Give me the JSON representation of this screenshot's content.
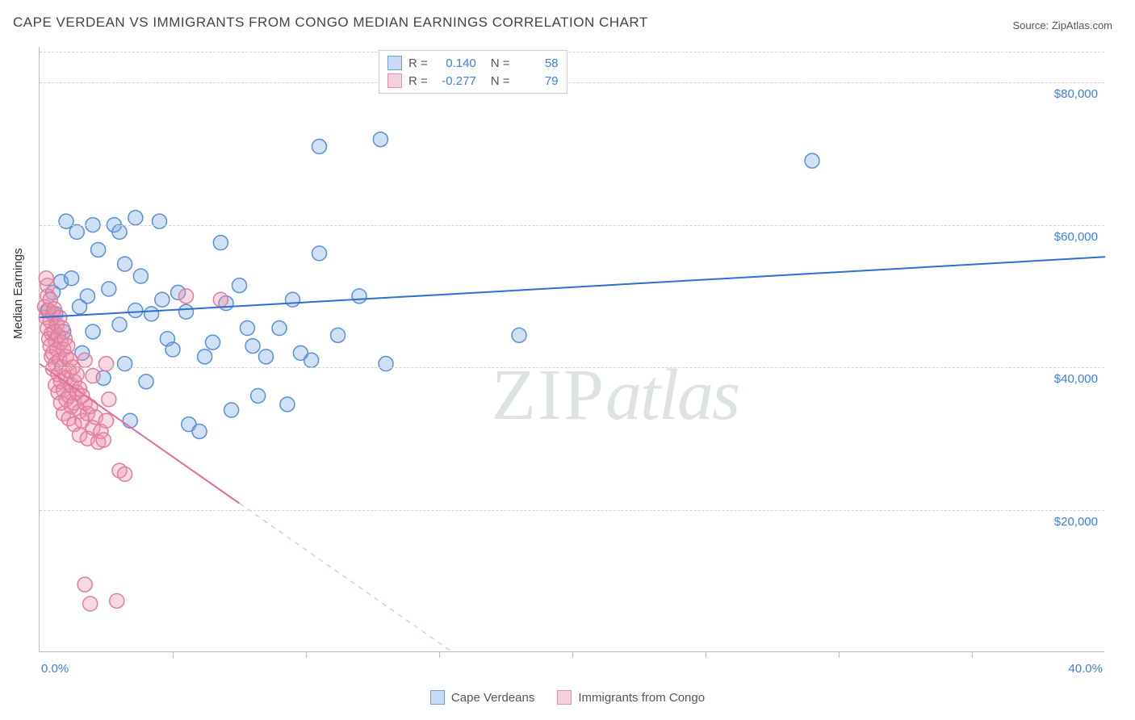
{
  "title": "CAPE VERDEAN VS IMMIGRANTS FROM CONGO MEDIAN EARNINGS CORRELATION CHART",
  "source": "Source: ZipAtlas.com",
  "watermark": "ZIPatlas",
  "y_axis_title": "Median Earnings",
  "chart": {
    "type": "scatter",
    "xlim": [
      0,
      40
    ],
    "ylim": [
      0,
      85000
    ],
    "x_ticks_minor_count": 8,
    "x_labels": {
      "min": "0.0%",
      "max": "40.0%"
    },
    "y_gridlines": [
      20000,
      40000,
      60000,
      80000
    ],
    "y_labels": [
      "$20,000",
      "$40,000",
      "$60,000",
      "$80,000"
    ],
    "background_color": "#ffffff",
    "grid_color": "#d5d5d5",
    "axis_color": "#bbbbbb",
    "tick_label_color": "#3b7de0",
    "marker_radius": 9,
    "marker_stroke_width": 1.5,
    "trendline_width": 2,
    "series": [
      {
        "name": "Cape Verdeans",
        "fill_color": "rgba(120,165,225,0.35)",
        "stroke_color": "#5b8fd6",
        "swatch_fill": "#c9dbf2",
        "swatch_border": "#6a9fe0",
        "R": "0.140",
        "N": "58",
        "trend": {
          "x1": 0,
          "y1": 47000,
          "x2": 40,
          "y2": 55500,
          "solid": true,
          "color": "#2e6fd1"
        },
        "points": [
          [
            0.3,
            48000
          ],
          [
            0.5,
            50500
          ],
          [
            0.6,
            47500
          ],
          [
            0.8,
            52000
          ],
          [
            0.9,
            45000
          ],
          [
            1.0,
            60500
          ],
          [
            1.2,
            52500
          ],
          [
            1.4,
            59000
          ],
          [
            1.5,
            48500
          ],
          [
            1.6,
            42000
          ],
          [
            1.8,
            50000
          ],
          [
            2.0,
            60000
          ],
          [
            2.0,
            45000
          ],
          [
            2.2,
            56500
          ],
          [
            2.4,
            38500
          ],
          [
            2.6,
            51000
          ],
          [
            2.8,
            60000
          ],
          [
            3.0,
            59000
          ],
          [
            3.0,
            46000
          ],
          [
            3.2,
            40500
          ],
          [
            3.2,
            54500
          ],
          [
            3.4,
            32500
          ],
          [
            3.6,
            48000
          ],
          [
            3.6,
            61000
          ],
          [
            3.8,
            52800
          ],
          [
            4.0,
            38000
          ],
          [
            4.2,
            47500
          ],
          [
            4.5,
            60500
          ],
          [
            4.6,
            49500
          ],
          [
            4.8,
            44000
          ],
          [
            5.0,
            42500
          ],
          [
            5.2,
            50500
          ],
          [
            5.5,
            47800
          ],
          [
            5.6,
            32000
          ],
          [
            6.0,
            31000
          ],
          [
            6.2,
            41500
          ],
          [
            6.5,
            43500
          ],
          [
            6.8,
            57500
          ],
          [
            7.0,
            49000
          ],
          [
            7.2,
            34000
          ],
          [
            7.5,
            51500
          ],
          [
            7.8,
            45500
          ],
          [
            8.0,
            43000
          ],
          [
            8.2,
            36000
          ],
          [
            8.5,
            41500
          ],
          [
            9.0,
            45500
          ],
          [
            9.3,
            34800
          ],
          [
            9.5,
            49500
          ],
          [
            10.2,
            41000
          ],
          [
            10.5,
            56000
          ],
          [
            10.5,
            71000
          ],
          [
            11.2,
            44500
          ],
          [
            12.0,
            50000
          ],
          [
            12.8,
            72000
          ],
          [
            13.0,
            40500
          ],
          [
            18.0,
            44500
          ],
          [
            29.0,
            69000
          ],
          [
            9.8,
            42000
          ]
        ]
      },
      {
        "name": "Immigrants from Congo",
        "fill_color": "rgba(235,145,170,0.35)",
        "stroke_color": "#e07da0",
        "swatch_fill": "#f5d0dc",
        "swatch_border": "#e58fb0",
        "R": "-0.277",
        "N": "79",
        "trend": {
          "x1": 0,
          "y1": 40500,
          "x2": 15.5,
          "y2": 0,
          "solid_until_x": 7.5,
          "color": "#e36aa0"
        },
        "points": [
          [
            0.2,
            48500
          ],
          [
            0.25,
            47000
          ],
          [
            0.3,
            45500
          ],
          [
            0.3,
            50000
          ],
          [
            0.35,
            44000
          ],
          [
            0.35,
            48000
          ],
          [
            0.4,
            46500
          ],
          [
            0.4,
            43000
          ],
          [
            0.4,
            49500
          ],
          [
            0.45,
            41500
          ],
          [
            0.45,
            44800
          ],
          [
            0.5,
            47500
          ],
          [
            0.5,
            42000
          ],
          [
            0.5,
            39800
          ],
          [
            0.55,
            45000
          ],
          [
            0.55,
            48200
          ],
          [
            0.6,
            43800
          ],
          [
            0.6,
            40500
          ],
          [
            0.6,
            37500
          ],
          [
            0.65,
            46000
          ],
          [
            0.65,
            42500
          ],
          [
            0.7,
            44500
          ],
          [
            0.7,
            39000
          ],
          [
            0.7,
            36500
          ],
          [
            0.75,
            47000
          ],
          [
            0.75,
            41000
          ],
          [
            0.8,
            43500
          ],
          [
            0.8,
            38000
          ],
          [
            0.8,
            35000
          ],
          [
            0.85,
            45500
          ],
          [
            0.85,
            40000
          ],
          [
            0.9,
            42500
          ],
          [
            0.9,
            36800
          ],
          [
            0.9,
            33500
          ],
          [
            0.95,
            44000
          ],
          [
            1.0,
            41500
          ],
          [
            1.0,
            38500
          ],
          [
            1.0,
            35500
          ],
          [
            1.05,
            43000
          ],
          [
            1.1,
            39500
          ],
          [
            1.1,
            36000
          ],
          [
            1.1,
            32800
          ],
          [
            1.15,
            41000
          ],
          [
            1.2,
            37500
          ],
          [
            1.2,
            34500
          ],
          [
            1.25,
            40000
          ],
          [
            1.3,
            38000
          ],
          [
            1.3,
            35000
          ],
          [
            1.3,
            32000
          ],
          [
            1.4,
            39000
          ],
          [
            1.4,
            36500
          ],
          [
            1.5,
            37000
          ],
          [
            1.5,
            33800
          ],
          [
            1.5,
            30500
          ],
          [
            1.6,
            36000
          ],
          [
            1.6,
            32500
          ],
          [
            1.7,
            35000
          ],
          [
            1.7,
            41000
          ],
          [
            1.8,
            33500
          ],
          [
            1.8,
            30000
          ],
          [
            1.9,
            34500
          ],
          [
            2.0,
            31500
          ],
          [
            2.0,
            38800
          ],
          [
            2.1,
            33000
          ],
          [
            2.2,
            29500
          ],
          [
            2.3,
            31000
          ],
          [
            2.4,
            29800
          ],
          [
            2.5,
            32500
          ],
          [
            0.3,
            51500
          ],
          [
            0.25,
            52500
          ],
          [
            1.7,
            9500
          ],
          [
            1.9,
            6800
          ],
          [
            2.9,
            7200
          ],
          [
            2.5,
            40500
          ],
          [
            3.0,
            25500
          ],
          [
            3.2,
            25000
          ],
          [
            6.8,
            49500
          ],
          [
            5.5,
            50000
          ],
          [
            2.6,
            35500
          ]
        ]
      }
    ]
  },
  "legend_top_labels": {
    "R": "R =",
    "N": "N ="
  }
}
